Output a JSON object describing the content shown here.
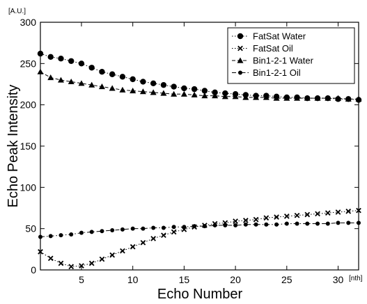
{
  "chart_data": {
    "type": "line",
    "title": "",
    "xlabel": "Echo Number",
    "ylabel": "Echo Peak Intensity",
    "x_unit": "[nth]",
    "y_unit": "[A.U.]",
    "xlim": [
      1,
      32
    ],
    "ylim": [
      0,
      300
    ],
    "xticks": [
      5,
      10,
      15,
      20,
      25,
      30
    ],
    "yticks": [
      0,
      50,
      100,
      150,
      200,
      250,
      300
    ],
    "grid": false,
    "legend_position": "top-right",
    "x": [
      1,
      2,
      3,
      4,
      5,
      6,
      7,
      8,
      9,
      10,
      11,
      12,
      13,
      14,
      15,
      16,
      17,
      18,
      19,
      20,
      21,
      22,
      23,
      24,
      25,
      26,
      27,
      28,
      29,
      30,
      31,
      32
    ],
    "series": [
      {
        "name": "FatSat   Water",
        "marker": "circle",
        "line": "dotted",
        "values": [
          262,
          258,
          256,
          253,
          250,
          245,
          240,
          237,
          234,
          231,
          228,
          226,
          224,
          222,
          220,
          219,
          217,
          215,
          214,
          213,
          212,
          211,
          211,
          210,
          209,
          209,
          208,
          208,
          208,
          207,
          207,
          206
        ]
      },
      {
        "name": "FatSat   Oil",
        "marker": "x",
        "line": "dotted",
        "values": [
          22,
          14,
          8,
          4,
          5,
          8,
          13,
          18,
          23,
          28,
          33,
          38,
          42,
          46,
          49,
          52,
          54,
          56,
          57,
          59,
          60,
          61,
          63,
          64,
          65,
          66,
          67,
          68,
          69,
          70,
          71,
          72
        ]
      },
      {
        "name": "Bin1-2-1 Water",
        "marker": "triangle",
        "line": "dashed",
        "values": [
          240,
          233,
          230,
          228,
          226,
          224,
          222,
          220,
          218,
          217,
          216,
          215,
          214,
          213,
          213,
          212,
          211,
          211,
          210,
          210,
          209,
          209,
          209,
          208,
          208,
          208,
          208,
          208,
          208,
          208,
          207,
          207
        ]
      },
      {
        "name": "Bin1-2-1 Oil",
        "marker": "dot",
        "line": "dashdot",
        "values": [
          40,
          41,
          42,
          43,
          45,
          46,
          47,
          48,
          49,
          50,
          50,
          51,
          51,
          52,
          52,
          53,
          53,
          54,
          54,
          54,
          55,
          55,
          55,
          55,
          56,
          56,
          56,
          56,
          56,
          57,
          57,
          57
        ]
      }
    ]
  }
}
